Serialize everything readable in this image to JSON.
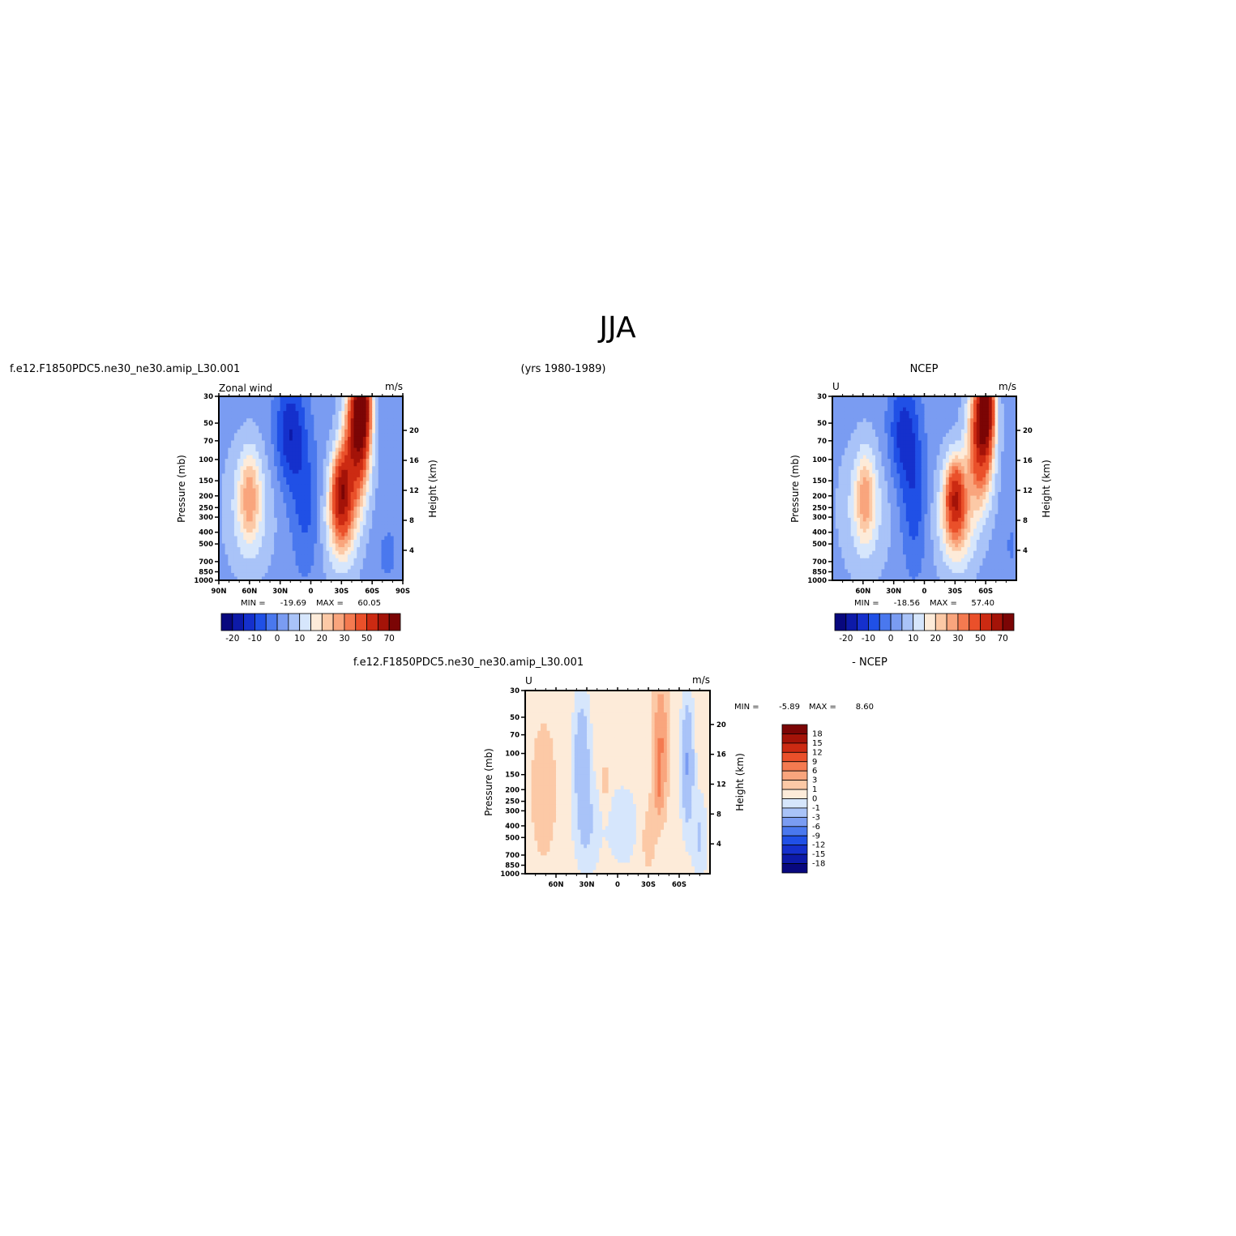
{
  "figure": {
    "title": "JJA",
    "case_name": "f.e12.F1850PDC5.ne30_ne30.amip_L30.001",
    "years": "(yrs 1980-1989)",
    "obs_name": "NCEP",
    "diff_label": "- NCEP"
  },
  "chart_data": [
    {
      "id": "model",
      "type": "heatmap",
      "left_label": "Zonal wind",
      "right_label": "m/s",
      "xlabel": "",
      "ylabel": "Pressure (mb)",
      "y2label": "Height (km)",
      "xlim": [
        90,
        -90
      ],
      "x_ticks": [
        "90N",
        "60N",
        "30N",
        "0",
        "30S",
        "60S",
        "90S"
      ],
      "x_tick_values": [
        90,
        60,
        30,
        0,
        -30,
        -60,
        -90
      ],
      "p_ticks": [
        30,
        50,
        70,
        100,
        150,
        200,
        250,
        300,
        400,
        500,
        700,
        850,
        1000
      ],
      "height_ticks": [
        4,
        8,
        12,
        16,
        20
      ],
      "stats": {
        "min_label": "MIN =",
        "min": "-19.69",
        "max_label": "MAX =",
        "max": "60.05"
      },
      "colorbar": {
        "orientation": "horizontal",
        "colors": [
          "#08087e",
          "#0d1aa8",
          "#1530cc",
          "#2050e6",
          "#4a78ee",
          "#7a9cf2",
          "#a9c3f8",
          "#d6e6fc",
          "#fdebd9",
          "#fcc9a6",
          "#f9a57d",
          "#f47a50",
          "#ea502a",
          "#cc2a12",
          "#a41308",
          "#7b0505"
        ],
        "labels": [
          "-20",
          "-10",
          "0",
          "10",
          "20",
          "30",
          "50",
          "70"
        ]
      },
      "features": [
        {
          "x": 60,
          "p": 250,
          "v": 10,
          "rx": 22,
          "rp": 550
        },
        {
          "x": 60,
          "p": 200,
          "v": 16,
          "rx": 10,
          "rp": 250
        },
        {
          "x": 20,
          "p": 60,
          "v": -18,
          "rx": 15,
          "rp": 110
        },
        {
          "x": 5,
          "p": 250,
          "v": -10,
          "rx": 14,
          "rp": 600
        },
        {
          "x": -30,
          "p": 300,
          "v": 22,
          "rx": 16,
          "rp": 500
        },
        {
          "x": -30,
          "p": 180,
          "v": 40,
          "rx": 9,
          "rp": 200
        },
        {
          "x": -45,
          "p": 70,
          "v": 50,
          "rx": 12,
          "rp": 140
        },
        {
          "x": -50,
          "p": 35,
          "v": 60,
          "rx": 8,
          "rp": 40
        },
        {
          "x": -75,
          "p": 600,
          "v": -5,
          "rx": 12,
          "rp": 500
        }
      ],
      "background": -2
    },
    {
      "id": "obs",
      "type": "heatmap",
      "left_label": "U",
      "right_label": "m/s",
      "xlabel": "",
      "ylabel": "Pressure (mb)",
      "y2label": "Height (km)",
      "xlim": [
        90,
        -90
      ],
      "x_ticks": [
        "60N",
        "30N",
        "0",
        "30S",
        "60S"
      ],
      "x_tick_values": [
        60,
        30,
        0,
        -30,
        -60
      ],
      "p_ticks": [
        30,
        50,
        70,
        100,
        150,
        200,
        250,
        300,
        400,
        500,
        700,
        850,
        1000
      ],
      "height_ticks": [
        4,
        8,
        12,
        16,
        20
      ],
      "stats": {
        "min_label": "MIN =",
        "min": "-18.56",
        "max_label": "MAX =",
        "max": "57.40"
      },
      "colorbar": {
        "orientation": "horizontal",
        "colors": [
          "#08087e",
          "#0d1aa8",
          "#1530cc",
          "#2050e6",
          "#4a78ee",
          "#7a9cf2",
          "#a9c3f8",
          "#d6e6fc",
          "#fdebd9",
          "#fcc9a6",
          "#f9a57d",
          "#f47a50",
          "#ea502a",
          "#cc2a12",
          "#a41308",
          "#7b0505"
        ],
        "labels": [
          "-20",
          "-10",
          "0",
          "10",
          "20",
          "30",
          "50",
          "70"
        ]
      },
      "features": [
        {
          "x": 58,
          "p": 250,
          "v": 10,
          "rx": 22,
          "rp": 550
        },
        {
          "x": 58,
          "p": 200,
          "v": 16,
          "rx": 9,
          "rp": 250
        },
        {
          "x": 20,
          "p": 60,
          "v": -16,
          "rx": 15,
          "rp": 110
        },
        {
          "x": 10,
          "p": 250,
          "v": -11,
          "rx": 12,
          "rp": 600
        },
        {
          "x": -32,
          "p": 300,
          "v": 22,
          "rx": 18,
          "rp": 500
        },
        {
          "x": -30,
          "p": 200,
          "v": 34,
          "rx": 9,
          "rp": 200
        },
        {
          "x": -55,
          "p": 70,
          "v": 45,
          "rx": 12,
          "rp": 140
        },
        {
          "x": -60,
          "p": 35,
          "v": 55,
          "rx": 8,
          "rp": 40
        },
        {
          "x": -85,
          "p": 500,
          "v": -4,
          "rx": 8,
          "rp": 500
        }
      ],
      "background": -2
    },
    {
      "id": "diff",
      "type": "heatmap",
      "left_label": "U",
      "right_label": "m/s",
      "xlabel": "",
      "ylabel": "Pressure (mb)",
      "y2label": "Height (km)",
      "xlim": [
        90,
        -90
      ],
      "x_ticks": [
        "60N",
        "30N",
        "0",
        "30S",
        "60S"
      ],
      "x_tick_values": [
        60,
        30,
        0,
        -30,
        -60
      ],
      "p_ticks": [
        30,
        50,
        70,
        100,
        150,
        200,
        250,
        300,
        400,
        500,
        700,
        850,
        1000
      ],
      "height_ticks": [
        4,
        8,
        12,
        16,
        20
      ],
      "stats": {
        "min_label": "MIN =",
        "min": "-5.89",
        "max_label": "MAX =",
        "max": "8.60"
      },
      "colorbar": {
        "orientation": "vertical",
        "colors": [
          "#08087e",
          "#0d1aa8",
          "#1530cc",
          "#2050e6",
          "#4a78ee",
          "#7a9cf2",
          "#a9c3f8",
          "#d6e6fc",
          "#fdebd9",
          "#fcc9a6",
          "#f9a57d",
          "#f47a50",
          "#ea502a",
          "#cc2a12",
          "#a41308",
          "#7b0505"
        ],
        "labels": [
          "18",
          "15",
          "12",
          "9",
          "6",
          "3",
          "1",
          "0",
          "-1",
          "-3",
          "-6",
          "-9",
          "-12",
          "-15",
          "-18"
        ]
      },
      "features": [
        {
          "x": 72,
          "p": 200,
          "v": 1.5,
          "rx": 12,
          "rp": 500
        },
        {
          "x": 35,
          "p": 100,
          "v": -2.5,
          "rx": 8,
          "rp": 200
        },
        {
          "x": 30,
          "p": 400,
          "v": -1.5,
          "rx": 12,
          "rp": 600
        },
        {
          "x": 12,
          "p": 180,
          "v": 1.2,
          "rx": 4,
          "rp": 120
        },
        {
          "x": -5,
          "p": 400,
          "v": -1,
          "rx": 16,
          "rp": 500
        },
        {
          "x": -30,
          "p": 500,
          "v": 1.2,
          "rx": 8,
          "rp": 500
        },
        {
          "x": -42,
          "p": 80,
          "v": 6,
          "rx": 6,
          "rp": 140
        },
        {
          "x": -40,
          "p": 200,
          "v": 4,
          "rx": 5,
          "rp": 120
        },
        {
          "x": -68,
          "p": 120,
          "v": -3.5,
          "rx": 6,
          "rp": 260
        },
        {
          "x": -80,
          "p": 500,
          "v": -1.5,
          "rx": 7,
          "rp": 600
        }
      ],
      "background": 0.5
    }
  ]
}
